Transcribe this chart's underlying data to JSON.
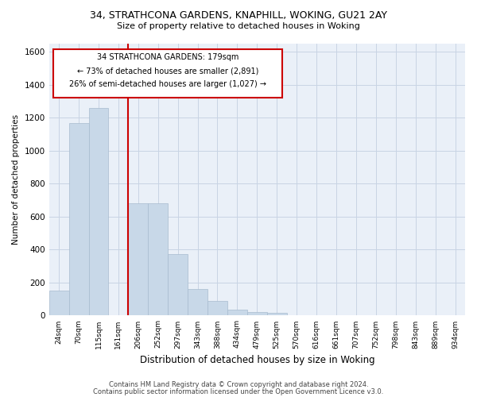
{
  "title1": "34, STRATHCONA GARDENS, KNAPHILL, WOKING, GU21 2AY",
  "title2": "Size of property relative to detached houses in Woking",
  "xlabel": "Distribution of detached houses by size in Woking",
  "ylabel": "Number of detached properties",
  "footer1": "Contains HM Land Registry data © Crown copyright and database right 2024.",
  "footer2": "Contains public sector information licensed under the Open Government Licence v3.0.",
  "annotation_line1": "34 STRATHCONA GARDENS: 179sqm",
  "annotation_line2": "← 73% of detached houses are smaller (2,891)",
  "annotation_line3": "26% of semi-detached houses are larger (1,027) →",
  "bar_color": "#c8d8e8",
  "bar_edge_color": "#a8bccf",
  "line_color": "#cc0000",
  "grid_color": "#c8d4e4",
  "bg_color": "#eaf0f8",
  "categories": [
    "24sqm",
    "70sqm",
    "115sqm",
    "161sqm",
    "206sqm",
    "252sqm",
    "297sqm",
    "343sqm",
    "388sqm",
    "434sqm",
    "479sqm",
    "525sqm",
    "570sqm",
    "616sqm",
    "661sqm",
    "707sqm",
    "752sqm",
    "798sqm",
    "843sqm",
    "889sqm",
    "934sqm"
  ],
  "values": [
    150,
    1170,
    1260,
    0,
    680,
    680,
    375,
    160,
    90,
    35,
    20,
    15,
    0,
    0,
    0,
    0,
    0,
    0,
    0,
    0,
    0
  ],
  "ylim": [
    0,
    1650
  ],
  "yticks": [
    0,
    200,
    400,
    600,
    800,
    1000,
    1200,
    1400,
    1600
  ],
  "vline_x": 3.5
}
